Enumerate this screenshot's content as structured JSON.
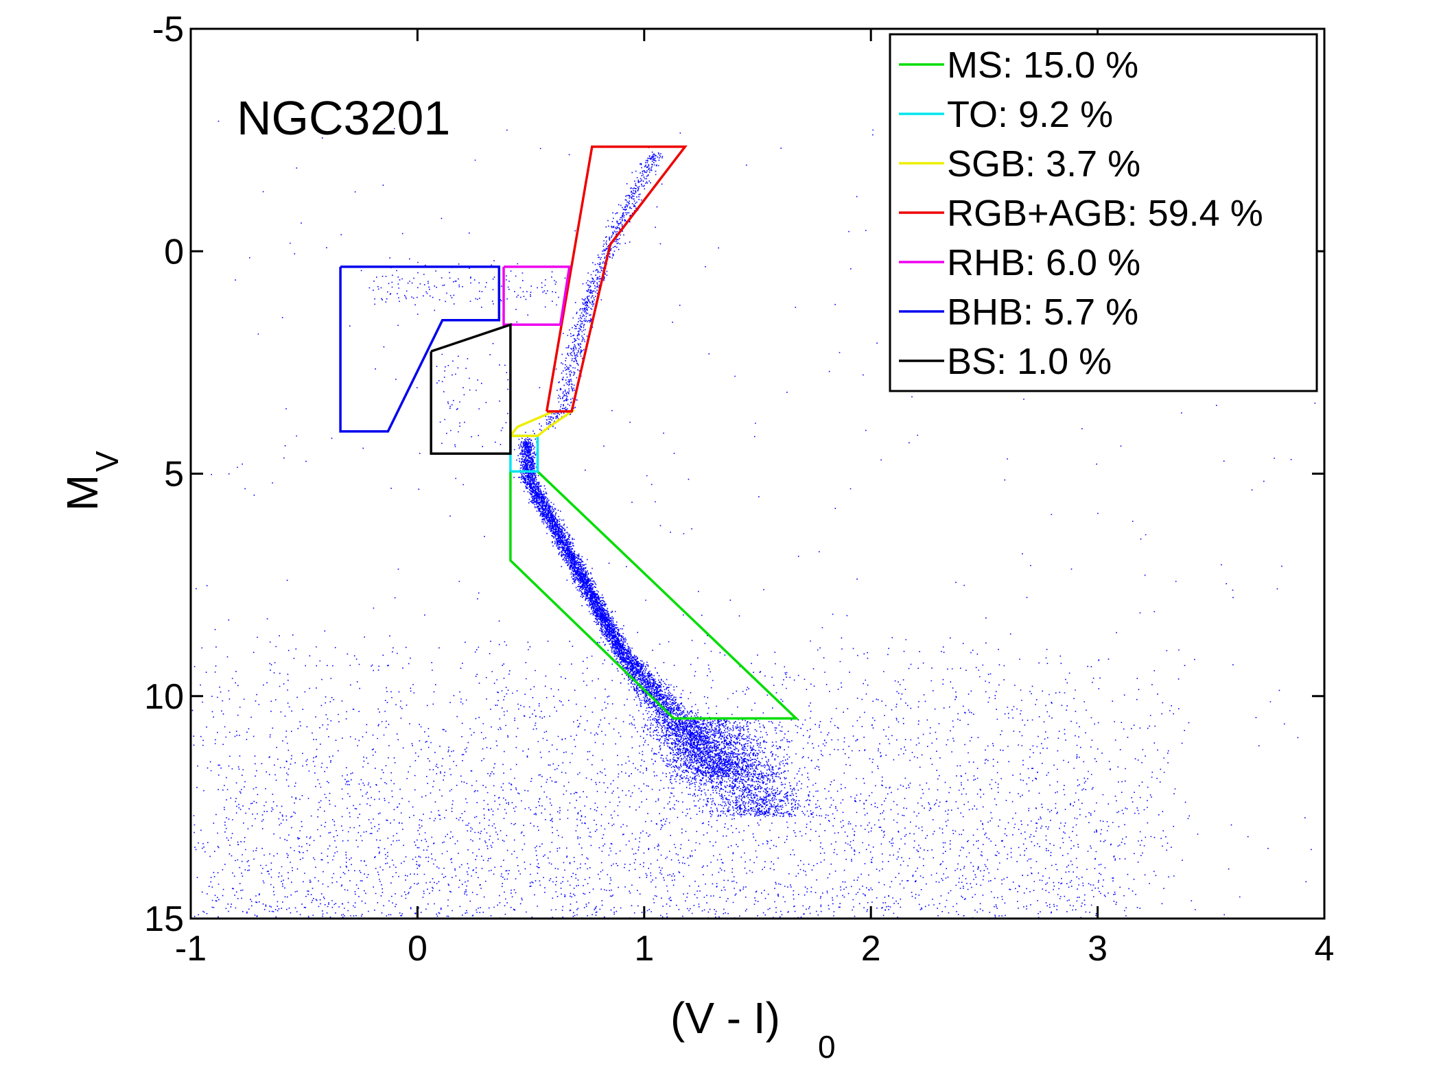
{
  "chart_data": {
    "type": "scatter",
    "annotation": "NGC3201",
    "xlabel": "(V - I)",
    "xlabel_subscript": "0",
    "ylabel": "M",
    "ylabel_subscript": "V",
    "xlim": [
      -1,
      4
    ],
    "ylim": [
      -5,
      15
    ],
    "y_inverted": true,
    "grid": false,
    "legend_position": "top-right",
    "x_ticks": [
      {
        "value": -1,
        "label": "-1"
      },
      {
        "value": 0,
        "label": "0"
      },
      {
        "value": 1,
        "label": "1"
      },
      {
        "value": 2,
        "label": "2"
      },
      {
        "value": 3,
        "label": "3"
      },
      {
        "value": 4,
        "label": "4"
      }
    ],
    "y_ticks": [
      {
        "value": -5,
        "label": "-5"
      },
      {
        "value": 0,
        "label": "0"
      },
      {
        "value": 5,
        "label": "5"
      },
      {
        "value": 10,
        "label": "10"
      },
      {
        "value": 15,
        "label": "15"
      }
    ],
    "scatter_color": "#0000ff",
    "regions": [
      {
        "name": "MS",
        "legend": "MS: 15.0 %",
        "color": "#00dd00",
        "polygon": [
          [
            0.41,
            4.95
          ],
          [
            0.53,
            4.95
          ],
          [
            1.67,
            10.5
          ],
          [
            1.13,
            10.5
          ],
          [
            0.41,
            6.95
          ],
          [
            0.41,
            4.95
          ]
        ]
      },
      {
        "name": "TO",
        "legend": "TO: 9.2 %",
        "color": "#00e5ee",
        "polygon": [
          [
            0.41,
            4.95
          ],
          [
            0.53,
            4.95
          ],
          [
            0.53,
            4.15
          ],
          [
            0.41,
            4.15
          ],
          [
            0.41,
            4.95
          ]
        ]
      },
      {
        "name": "SGB",
        "legend": "SGB: 3.7 %",
        "color": "#eeee00",
        "polygon": [
          [
            0.41,
            4.15
          ],
          [
            0.53,
            4.15
          ],
          [
            0.58,
            3.95
          ],
          [
            0.68,
            3.6
          ],
          [
            0.6,
            3.6
          ],
          [
            0.44,
            3.95
          ],
          [
            0.41,
            4.15
          ]
        ]
      },
      {
        "name": "RGB+AGB",
        "legend": "RGB+AGB: 59.4 %",
        "color": "#ee0000",
        "polygon": [
          [
            0.57,
            3.6
          ],
          [
            0.77,
            -2.35
          ],
          [
            1.18,
            -2.35
          ],
          [
            0.85,
            -0.15
          ],
          [
            0.68,
            3.6
          ],
          [
            0.57,
            3.6
          ]
        ]
      },
      {
        "name": "RHB",
        "legend": "RHB: 6.0 %",
        "color": "#ee00ee",
        "polygon": [
          [
            0.38,
            0.35
          ],
          [
            0.67,
            0.35
          ],
          [
            0.63,
            1.65
          ],
          [
            0.38,
            1.65
          ],
          [
            0.38,
            0.35
          ]
        ]
      },
      {
        "name": "BHB",
        "legend": "BHB: 5.7 %",
        "color": "#0000ee",
        "polygon": [
          [
            -0.34,
            0.35
          ],
          [
            0.36,
            0.35
          ],
          [
            0.36,
            1.55
          ],
          [
            0.11,
            1.55
          ],
          [
            -0.13,
            4.05
          ],
          [
            -0.34,
            4.05
          ],
          [
            -0.34,
            0.35
          ]
        ]
      },
      {
        "name": "BS",
        "legend": "BS: 1.0 %",
        "color": "#000000",
        "polygon": [
          [
            0.06,
            2.25
          ],
          [
            0.41,
            1.65
          ],
          [
            0.41,
            4.55
          ],
          [
            0.06,
            4.55
          ],
          [
            0.06,
            2.25
          ]
        ]
      }
    ]
  }
}
